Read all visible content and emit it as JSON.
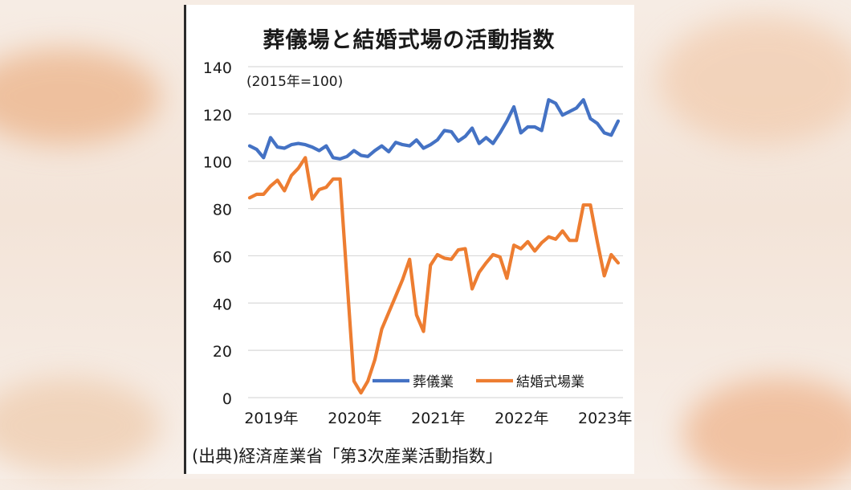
{
  "chart_data": {
    "type": "line",
    "title": "葬儀場と結婚式場の活動指数",
    "annotation": "(2015年=100)",
    "source": "(出典)経済産業省「第3次産業活動指数」",
    "ylim": [
      0,
      140
    ],
    "yticks": [
      0,
      20,
      40,
      60,
      80,
      100,
      120,
      140
    ],
    "xticks": [
      {
        "label": "2019年",
        "index": 0
      },
      {
        "label": "2020年",
        "index": 12
      },
      {
        "label": "2021年",
        "index": 24
      },
      {
        "label": "2022年",
        "index": 36
      },
      {
        "label": "2023年",
        "index": 48
      }
    ],
    "grid": true,
    "legend_position": "bottom-right",
    "series": [
      {
        "name": "葬儀業",
        "color": "#4472c4",
        "values": [
          106.5,
          105,
          101.5,
          110,
          106,
          105.5,
          107,
          107.5,
          107,
          106,
          104.5,
          106.5,
          101.5,
          101,
          102,
          104.5,
          102.5,
          102,
          104.5,
          106.5,
          104,
          108,
          107,
          106.5,
          109,
          105.5,
          107,
          109,
          113,
          112.5,
          108.5,
          110.5,
          114,
          107.5,
          110,
          107.5,
          112,
          117,
          123,
          112,
          114.5,
          114.5,
          113,
          126,
          124.5,
          119.5,
          121,
          122.5,
          126,
          118,
          116,
          112,
          111,
          117
        ]
      },
      {
        "name": "結婚式場業",
        "color": "#ed7d31",
        "values": [
          84.5,
          86,
          86,
          89.5,
          92,
          87.5,
          94,
          97,
          101.5,
          84,
          88,
          89,
          92.5,
          92.5,
          50,
          7,
          2,
          7,
          16,
          29,
          36,
          43,
          50,
          58.5,
          35,
          28,
          56,
          60.5,
          59,
          58.5,
          62.5,
          63,
          46,
          53,
          57,
          60.5,
          59.5,
          50.5,
          64.5,
          63,
          66,
          62,
          65.5,
          68,
          67,
          70.5,
          66.5,
          66.5,
          81.5,
          81.5,
          66,
          51.5,
          60.5,
          57
        ]
      }
    ]
  }
}
